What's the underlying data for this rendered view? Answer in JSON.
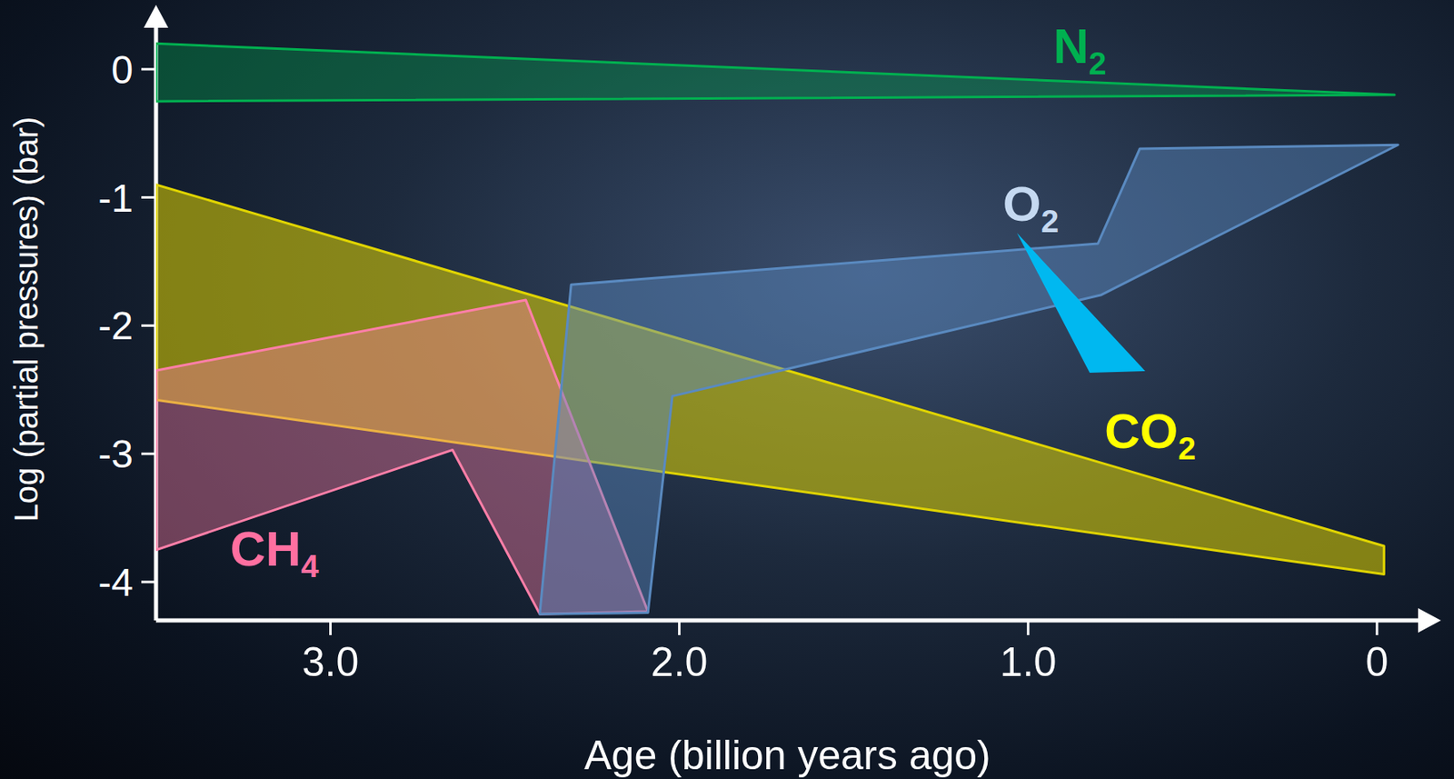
{
  "chart_data": {
    "type": "polygon",
    "xlabel": "Age (billion years ago)",
    "ylabel": "Log (partial pressures) (bar)",
    "xlim": [
      3.5,
      -0.12
    ],
    "xticks": [
      {
        "value": 3,
        "label": "3.0"
      },
      {
        "value": 2,
        "label": "2.0"
      },
      {
        "value": 1,
        "label": "1.0"
      },
      0
    ],
    "ylim": [
      -4.3,
      0.4
    ],
    "yticks": [
      -4,
      -3,
      -2,
      -1,
      0
    ],
    "grid": false,
    "series": [
      {
        "name": "N2",
        "color": "#00b050",
        "x": [
          3.5,
          -0.05,
          3.5
        ],
        "y": [
          0.2,
          -0.2,
          -0.25
        ]
      },
      {
        "name": "CO2",
        "color": "#e0d400",
        "x": [
          3.5,
          -0.02,
          -0.02,
          3.5
        ],
        "y": [
          -0.9,
          -3.72,
          -3.94,
          -2.58
        ]
      },
      {
        "name": "CH4",
        "color": "#ff7fa8",
        "x": [
          3.5,
          2.44,
          2.09,
          2.4,
          2.65,
          3.5
        ],
        "y": [
          -2.35,
          -1.8,
          -4.23,
          -4.25,
          -2.97,
          -3.75
        ]
      },
      {
        "name": "O2",
        "color": "#5a8ac0",
        "x": [
          2.31,
          0.8,
          0.68,
          -0.06,
          0.79,
          2.02,
          2.09,
          2.4
        ],
        "y": [
          -1.68,
          -1.36,
          -0.62,
          -0.59,
          -1.76,
          -2.55,
          -4.24,
          -4.25
        ]
      }
    ]
  }
}
